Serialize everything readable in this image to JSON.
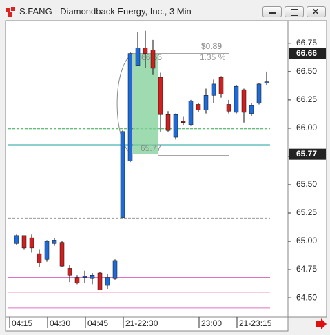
{
  "window_title": "S.FANG - Diamondback Energy, Inc., 3 Min",
  "chart_data": {
    "type": "candlestick",
    "categories": [
      "04:15",
      null,
      null,
      null,
      null,
      "04:30",
      null,
      null,
      null,
      null,
      "04:45",
      null,
      null,
      null,
      null,
      "21-22:30",
      null,
      null,
      null,
      null,
      null,
      null,
      null,
      null,
      null,
      "23:00",
      null,
      null,
      null,
      null,
      "21-23:15",
      null,
      null,
      null
    ],
    "open": [
      64.98,
      65.05,
      65.03,
      64.89,
      64.84,
      64.98,
      64.99,
      64.76,
      64.68,
      64.68,
      64.67,
      64.72,
      64.61,
      64.67,
      65.21,
      65.71,
      66.55,
      66.71,
      66.69,
      66.45,
      66.12,
      65.92,
      66.06,
      66.03,
      66.21,
      66.16,
      66.29,
      66.45,
      66.21,
      66.14,
      66.34,
      66.13,
      66.22,
      66.4
    ],
    "high": [
      65.06,
      65.05,
      65.06,
      64.93,
      65.01,
      65.03,
      65.0,
      64.79,
      64.7,
      64.74,
      64.72,
      64.73,
      64.71,
      64.84,
      65.98,
      66.67,
      66.85,
      66.86,
      66.78,
      66.49,
      66.15,
      66.13,
      66.1,
      66.25,
      66.22,
      66.35,
      66.43,
      66.46,
      66.25,
      66.38,
      66.35,
      66.22,
      66.4,
      66.5
    ],
    "low": [
      64.97,
      64.93,
      64.9,
      64.77,
      64.82,
      64.96,
      64.77,
      64.64,
      64.62,
      64.63,
      64.62,
      64.57,
      64.58,
      64.66,
      65.21,
      65.7,
      66.55,
      66.53,
      66.47,
      65.97,
      65.97,
      65.9,
      66.03,
      66.02,
      66.14,
      66.13,
      66.22,
      66.27,
      66.13,
      66.13,
      66.05,
      66.11,
      66.21,
      66.38
    ],
    "close": [
      65.05,
      64.94,
      64.94,
      64.81,
      65.0,
      65.01,
      64.78,
      64.7,
      64.63,
      64.69,
      64.7,
      64.57,
      64.68,
      64.83,
      65.97,
      66.66,
      66.71,
      66.66,
      66.53,
      66.12,
      65.98,
      66.12,
      66.05,
      66.24,
      66.16,
      66.29,
      66.39,
      66.3,
      66.15,
      66.37,
      66.14,
      66.2,
      66.39,
      66.41
    ],
    "up_color": "#1d6ad8",
    "down_color": "#cf1f1f",
    "ylim": [
      64.33,
      66.95
    ],
    "yticks": [
      {
        "value": 64.5,
        "label": "64.50"
      },
      64.75,
      {
        "value": 65,
        "label": "65.00"
      },
      65.25,
      {
        "value": 65.5,
        "label": "65.50"
      },
      65.75,
      {
        "value": 66,
        "label": "66.00"
      },
      66.25,
      {
        "value": 66.5,
        "label": "66.50"
      },
      66.75
    ],
    "levels": [
      {
        "value": 65.995,
        "color": "#2eaa4a",
        "dashed": true
      },
      {
        "value": 65.71,
        "color": "#2eaa4a",
        "dashed": true
      },
      {
        "value": 65.85,
        "color": "#1aa0a0",
        "dashed": false
      },
      {
        "value": 65.205,
        "color": "#999999",
        "dashed": true
      },
      {
        "value": 64.68,
        "color": "#e070c0",
        "dashed": false
      },
      {
        "value": 64.55,
        "color": "#f070b0",
        "dashed": false
      },
      {
        "value": 64.41,
        "color": "#e070c0",
        "dashed": false
      }
    ],
    "price_markers": [
      66.66,
      65.77
    ],
    "measure": {
      "from": 65.77,
      "to": 66.66,
      "change_label": "$0.89",
      "percent_label": "1.35 %"
    }
  }
}
